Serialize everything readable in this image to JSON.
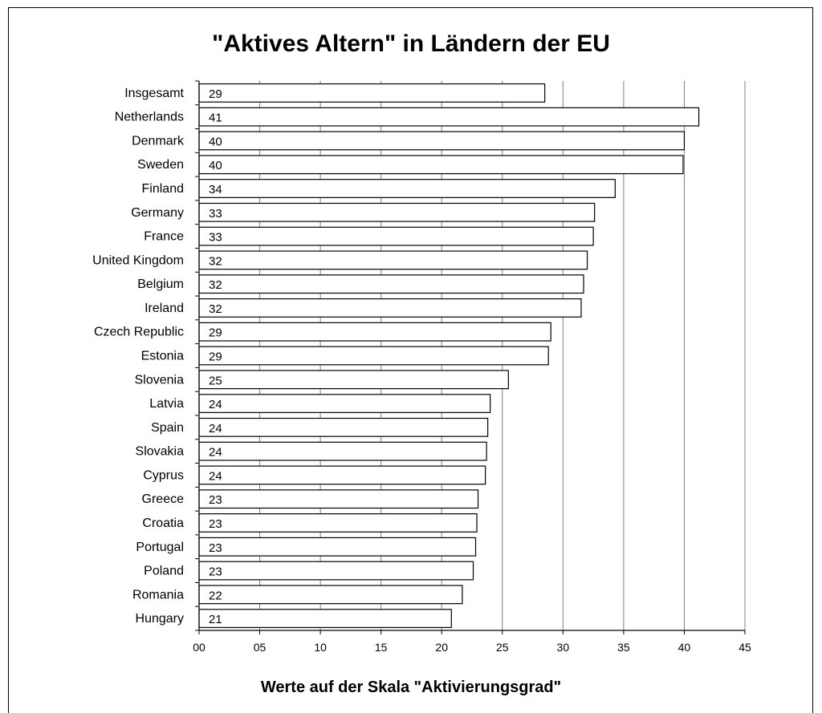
{
  "chart_data": {
    "type": "bar",
    "orientation": "horizontal",
    "title": "\"Aktives Altern\" in Ländern der EU",
    "xlabel": "Werte auf der Skala \"Aktivierungsgrad\"",
    "ylabel": "",
    "xlim": [
      0,
      45
    ],
    "ticks": [
      0,
      5,
      10,
      15,
      20,
      25,
      30,
      35,
      40,
      45
    ],
    "tick_labels": [
      "00",
      "05",
      "10",
      "15",
      "20",
      "25",
      "30",
      "35",
      "40",
      "45"
    ],
    "grid": true,
    "categories": [
      "Insgesamt",
      "Netherlands",
      "Denmark",
      "Sweden",
      "Finland",
      "Germany",
      "France",
      "United Kingdom",
      "Belgium",
      "Ireland",
      "Czech Republic",
      "Estonia",
      "Slovenia",
      "Latvia",
      "Spain",
      "Slovakia",
      "Cyprus",
      "Greece",
      "Croatia",
      "Portugal",
      "Poland",
      "Romania",
      "Hungary"
    ],
    "values": [
      28.5,
      41.2,
      40.0,
      39.9,
      34.3,
      32.6,
      32.5,
      32.0,
      31.7,
      31.5,
      29.0,
      28.8,
      25.5,
      24.0,
      23.8,
      23.7,
      23.6,
      23.0,
      22.9,
      22.8,
      22.6,
      21.7,
      20.8
    ],
    "data_labels": [
      "29",
      "41",
      "40",
      "40",
      "34",
      "33",
      "33",
      "32",
      "32",
      "32",
      "29",
      "29",
      "25",
      "24",
      "24",
      "24",
      "24",
      "23",
      "23",
      "23",
      "23",
      "22",
      "21"
    ],
    "bar_fill": "#ffffff",
    "bar_stroke": "#000000",
    "grid_color": "#808080"
  }
}
